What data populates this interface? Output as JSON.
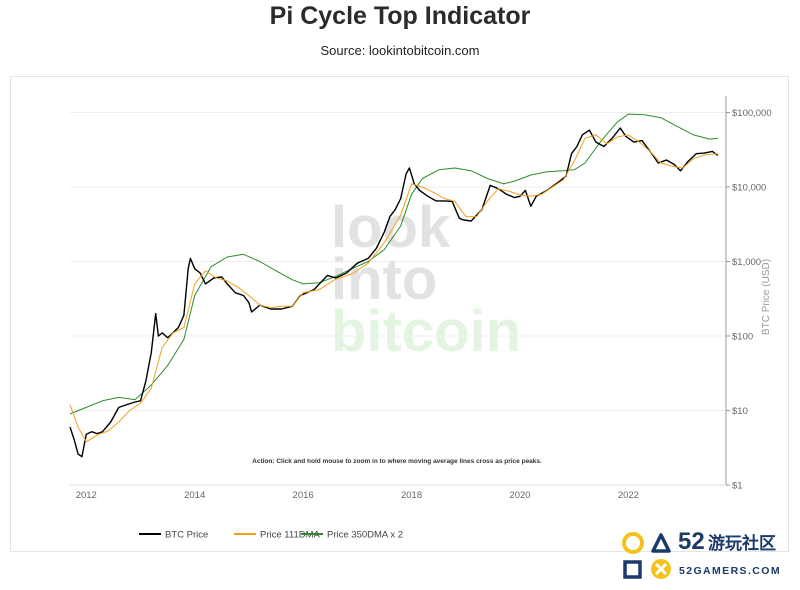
{
  "header": {
    "title": "Pi Cycle Top Indicator",
    "subtitle": "Source: lookintobitcoin.com"
  },
  "watermark": {
    "line1": "look",
    "line2": "into",
    "line3": "bitcoin"
  },
  "action_text": "Action: Click and hold mouse to zoom in to where moving average lines cross as price peaks.",
  "brand": {
    "number": "52",
    "cn_text": "游玩社区",
    "site": "52GAMERS.COM"
  },
  "colors": {
    "btc": "#000000",
    "ma111": "#f0a020",
    "ma350x2": "#2e8b2e",
    "grid": "#eeeeee",
    "axis": "#999999",
    "watermark_gray": "#e2e2e2",
    "watermark_green": "#e3f5e1",
    "brand_yellow": "#f4c21a",
    "brand_blue": "#1a3a6b"
  },
  "chart_data": {
    "type": "line",
    "title": "Pi Cycle Top Indicator",
    "subtitle": "Source: lookintobitcoin.com",
    "ylabel": "BTC Price (USD)",
    "y_scale": "log",
    "ylim": [
      1,
      130000
    ],
    "xlim": [
      2011.7,
      2023.8
    ],
    "x_ticks": [
      2012,
      2014,
      2016,
      2018,
      2020,
      2022
    ],
    "x_tick_labels": [
      "2012",
      "2014",
      "2016",
      "2018",
      "2020",
      "2022"
    ],
    "y_ticks": [
      1,
      10,
      100,
      1000,
      10000,
      100000
    ],
    "y_tick_labels": [
      "$1",
      "$10",
      "$100",
      "$1,000",
      "$10,000",
      "$100,000"
    ],
    "grid": true,
    "legend_position": "bottom",
    "series": [
      {
        "name": "BTC Price",
        "color": "#000000",
        "x": [
          2011.7,
          2011.78,
          2011.85,
          2011.92,
          2012.0,
          2012.1,
          2012.2,
          2012.3,
          2012.45,
          2012.6,
          2012.75,
          2012.9,
          2013.0,
          2013.1,
          2013.2,
          2013.28,
          2013.33,
          2013.4,
          2013.5,
          2013.6,
          2013.7,
          2013.8,
          2013.88,
          2013.92,
          2014.0,
          2014.1,
          2014.2,
          2014.35,
          2014.5,
          2014.6,
          2014.75,
          2014.9,
          2015.0,
          2015.05,
          2015.2,
          2015.4,
          2015.6,
          2015.8,
          2015.95,
          2016.2,
          2016.45,
          2016.6,
          2016.8,
          2017.0,
          2017.2,
          2017.35,
          2017.5,
          2017.6,
          2017.7,
          2017.8,
          2017.9,
          2017.96,
          2018.05,
          2018.15,
          2018.3,
          2018.45,
          2018.6,
          2018.75,
          2018.88,
          2018.96,
          2019.1,
          2019.3,
          2019.45,
          2019.6,
          2019.75,
          2019.9,
          2020.0,
          2020.1,
          2020.2,
          2020.3,
          2020.5,
          2020.7,
          2020.85,
          2020.95,
          2021.05,
          2021.15,
          2021.28,
          2021.4,
          2021.55,
          2021.7,
          2021.85,
          2021.95,
          2022.1,
          2022.25,
          2022.4,
          2022.55,
          2022.7,
          2022.85,
          2022.96,
          2023.1,
          2023.25,
          2023.4,
          2023.55,
          2023.65
        ],
        "y": [
          6,
          4,
          2.6,
          2.4,
          4.8,
          5.2,
          4.9,
          5.2,
          7,
          11,
          12,
          13,
          13.5,
          25,
          60,
          200,
          100,
          110,
          95,
          110,
          130,
          190,
          800,
          1100,
          800,
          700,
          500,
          600,
          620,
          500,
          380,
          350,
          280,
          210,
          260,
          230,
          230,
          250,
          350,
          420,
          650,
          600,
          700,
          950,
          1100,
          1500,
          2500,
          4000,
          5000,
          7000,
          15000,
          18000,
          11000,
          9000,
          7500,
          6500,
          6500,
          6400,
          3800,
          3600,
          3500,
          5000,
          10500,
          9500,
          8000,
          7200,
          7500,
          9000,
          5500,
          7500,
          9000,
          11500,
          14000,
          28000,
          35000,
          50000,
          58000,
          40000,
          35000,
          45000,
          62000,
          48000,
          40000,
          42000,
          30000,
          21000,
          23000,
          20000,
          16500,
          22000,
          28000,
          28500,
          30000,
          26500
        ]
      },
      {
        "name": "Price 111DMA",
        "color": "#f0a020",
        "x": [
          2011.7,
          2011.85,
          2012.0,
          2012.2,
          2012.4,
          2012.6,
          2012.8,
          2013.0,
          2013.2,
          2013.4,
          2013.6,
          2013.8,
          2014.0,
          2014.2,
          2014.4,
          2014.6,
          2014.8,
          2015.0,
          2015.2,
          2015.4,
          2015.6,
          2015.8,
          2016.0,
          2016.3,
          2016.6,
          2016.9,
          2017.2,
          2017.5,
          2017.8,
          2018.0,
          2018.2,
          2018.4,
          2018.6,
          2018.8,
          2019.0,
          2019.2,
          2019.4,
          2019.6,
          2019.8,
          2020.0,
          2020.2,
          2020.4,
          2020.6,
          2020.8,
          2021.0,
          2021.2,
          2021.4,
          2021.6,
          2021.8,
          2022.0,
          2022.2,
          2022.4,
          2022.6,
          2022.8,
          2023.0,
          2023.2,
          2023.4,
          2023.65
        ],
        "y": [
          12,
          6,
          3.8,
          4.7,
          5.3,
          7,
          10,
          12.5,
          20,
          70,
          110,
          130,
          500,
          750,
          600,
          550,
          450,
          350,
          260,
          240,
          250,
          250,
          380,
          420,
          580,
          680,
          950,
          1800,
          4200,
          11000,
          10000,
          8500,
          7000,
          6400,
          4000,
          4000,
          6500,
          9500,
          8800,
          7800,
          7500,
          8000,
          10000,
          12500,
          22000,
          45000,
          50000,
          38000,
          47000,
          50000,
          40000,
          30000,
          21000,
          19000,
          18000,
          24000,
          27000,
          28000
        ]
      },
      {
        "name": "Price 350DMA x 2",
        "color": "#2e8b2e",
        "x": [
          2011.7,
          2012.0,
          2012.3,
          2012.6,
          2012.9,
          2013.2,
          2013.5,
          2013.8,
          2014.0,
          2014.3,
          2014.6,
          2014.9,
          2015.2,
          2015.5,
          2015.8,
          2016.0,
          2016.3,
          2016.6,
          2016.9,
          2017.2,
          2017.5,
          2017.8,
          2018.0,
          2018.2,
          2018.5,
          2018.8,
          2019.1,
          2019.4,
          2019.7,
          2019.9,
          2020.2,
          2020.5,
          2020.8,
          2021.0,
          2021.2,
          2021.5,
          2021.8,
          2022.0,
          2022.3,
          2022.6,
          2022.9,
          2023.2,
          2023.5,
          2023.65
        ],
        "y": [
          9,
          11,
          13.5,
          15,
          14,
          22,
          40,
          90,
          350,
          850,
          1150,
          1250,
          1000,
          750,
          570,
          500,
          520,
          630,
          800,
          1000,
          1450,
          3000,
          8000,
          13000,
          17000,
          18000,
          16500,
          13000,
          11000,
          12000,
          14500,
          16000,
          16500,
          17000,
          21000,
          42000,
          75000,
          95000,
          93000,
          85000,
          65000,
          50000,
          44000,
          45000
        ]
      }
    ]
  }
}
